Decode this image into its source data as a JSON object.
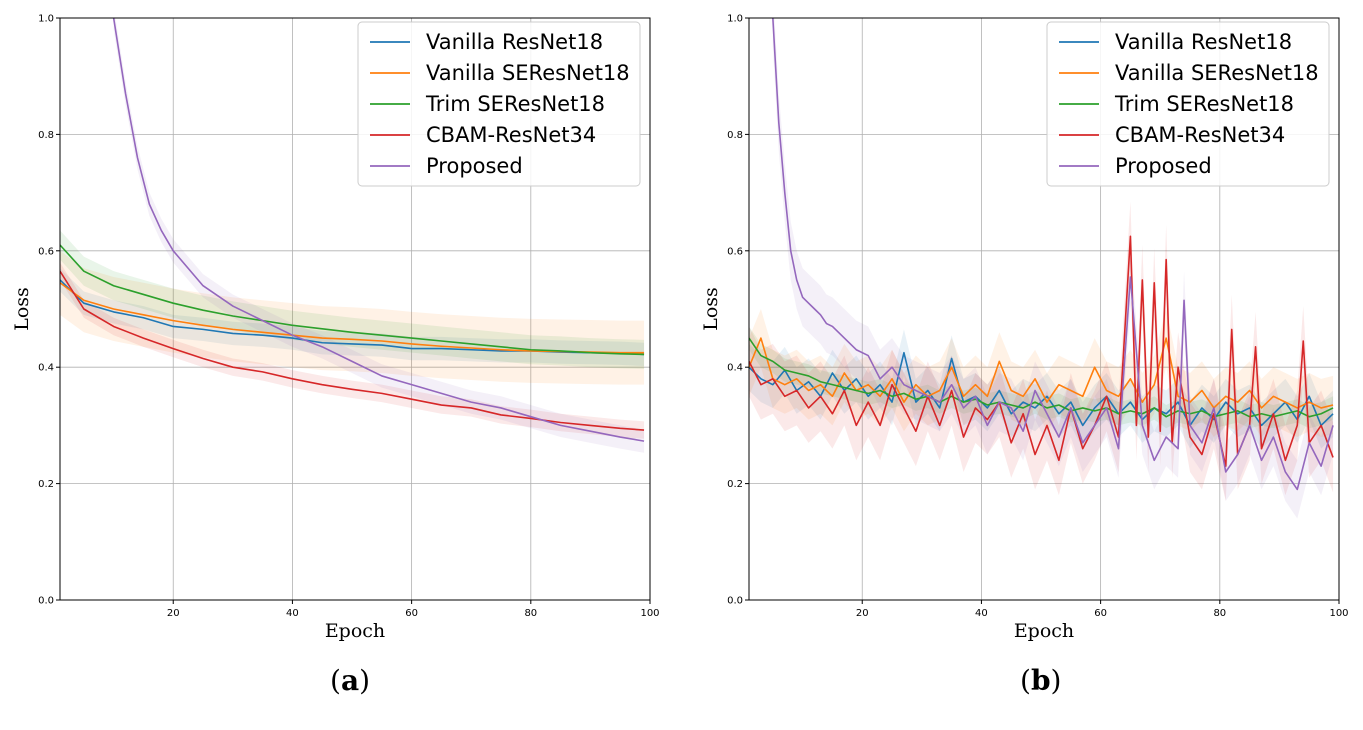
{
  "chart_data": [
    {
      "type": "line",
      "panel": "a",
      "panel_label": "(a)",
      "xlabel": "Epoch",
      "ylabel": "Loss",
      "xlim": [
        1,
        100
      ],
      "ylim": [
        0.0,
        1.0
      ],
      "xticks": [
        20,
        40,
        60,
        80,
        100
      ],
      "yticks": [
        0.0,
        0.2,
        0.4,
        0.6,
        0.8,
        1.0
      ],
      "ytick_labels": [
        "0.0",
        "0.2",
        "0.4",
        "0.6",
        "0.8",
        "1.0"
      ],
      "xtick_labels": [
        "20",
        "40",
        "60",
        "80",
        "100"
      ],
      "grid": true,
      "legend_position": "top-right",
      "series": [
        {
          "name": "Vanilla ResNet18",
          "color": "#1f77b4",
          "band": 0.02,
          "x": [
            1,
            5,
            10,
            15,
            20,
            25,
            30,
            35,
            40,
            45,
            50,
            55,
            60,
            65,
            70,
            75,
            80,
            85,
            90,
            95,
            99
          ],
          "values": [
            0.55,
            0.51,
            0.495,
            0.485,
            0.47,
            0.465,
            0.458,
            0.455,
            0.45,
            0.442,
            0.44,
            0.438,
            0.432,
            0.432,
            0.43,
            0.428,
            0.428,
            0.426,
            0.425,
            0.424,
            0.422
          ]
        },
        {
          "name": "Vanilla SEResNet18",
          "color": "#ff7f0e",
          "band": 0.055,
          "x": [
            1,
            5,
            10,
            15,
            20,
            25,
            30,
            35,
            40,
            45,
            50,
            55,
            60,
            65,
            70,
            75,
            80,
            85,
            90,
            95,
            99
          ],
          "values": [
            0.545,
            0.515,
            0.5,
            0.49,
            0.48,
            0.472,
            0.465,
            0.46,
            0.455,
            0.45,
            0.448,
            0.445,
            0.44,
            0.436,
            0.433,
            0.43,
            0.428,
            0.427,
            0.426,
            0.425,
            0.425
          ]
        },
        {
          "name": "Trim SEResNet18",
          "color": "#2ca02c",
          "band": 0.025,
          "x": [
            1,
            5,
            10,
            15,
            20,
            25,
            30,
            35,
            40,
            45,
            50,
            55,
            60,
            65,
            70,
            75,
            80,
            85,
            90,
            95,
            99
          ],
          "values": [
            0.61,
            0.565,
            0.54,
            0.525,
            0.51,
            0.498,
            0.488,
            0.48,
            0.472,
            0.466,
            0.46,
            0.455,
            0.45,
            0.445,
            0.44,
            0.435,
            0.43,
            0.428,
            0.425,
            0.423,
            0.422
          ]
        },
        {
          "name": "CBAM-ResNet34",
          "color": "#d62728",
          "band": 0.015,
          "x": [
            1,
            5,
            10,
            15,
            20,
            25,
            30,
            35,
            40,
            45,
            50,
            55,
            60,
            65,
            70,
            75,
            80,
            85,
            90,
            95,
            99
          ],
          "values": [
            0.565,
            0.5,
            0.47,
            0.45,
            0.432,
            0.415,
            0.4,
            0.392,
            0.38,
            0.37,
            0.362,
            0.355,
            0.345,
            0.335,
            0.33,
            0.318,
            0.312,
            0.305,
            0.3,
            0.295,
            0.292
          ]
        },
        {
          "name": "Proposed",
          "color": "#9467bd",
          "band": 0.02,
          "x": [
            10,
            12,
            14,
            16,
            18,
            20,
            25,
            30,
            35,
            40,
            45,
            50,
            55,
            60,
            65,
            70,
            75,
            80,
            85,
            90,
            95,
            99
          ],
          "values": [
            1.0,
            0.87,
            0.76,
            0.68,
            0.635,
            0.6,
            0.54,
            0.505,
            0.48,
            0.455,
            0.435,
            0.41,
            0.385,
            0.37,
            0.355,
            0.34,
            0.33,
            0.315,
            0.3,
            0.29,
            0.28,
            0.273
          ]
        }
      ]
    },
    {
      "type": "line",
      "panel": "b",
      "panel_label": "(b)",
      "xlabel": "Epoch",
      "ylabel": "Loss",
      "xlim": [
        1,
        100
      ],
      "ylim": [
        0.0,
        1.0
      ],
      "xticks": [
        20,
        40,
        60,
        80,
        100
      ],
      "yticks": [
        0.0,
        0.2,
        0.4,
        0.6,
        0.8,
        1.0
      ],
      "ytick_labels": [
        "0.0",
        "0.2",
        "0.4",
        "0.6",
        "0.8",
        "1.0"
      ],
      "xtick_labels": [
        "20",
        "40",
        "60",
        "80",
        "100"
      ],
      "grid": true,
      "legend_position": "top-right",
      "series": [
        {
          "name": "Vanilla ResNet18",
          "color": "#1f77b4",
          "band": 0.04,
          "x": [
            1,
            3,
            5,
            7,
            9,
            11,
            13,
            15,
            17,
            19,
            21,
            23,
            25,
            27,
            29,
            31,
            33,
            35,
            37,
            39,
            41,
            43,
            45,
            47,
            49,
            51,
            53,
            55,
            57,
            59,
            61,
            63,
            65,
            67,
            69,
            71,
            73,
            75,
            77,
            79,
            81,
            83,
            85,
            87,
            89,
            91,
            93,
            95,
            97,
            99
          ],
          "values": [
            0.4,
            0.38,
            0.37,
            0.395,
            0.36,
            0.375,
            0.35,
            0.39,
            0.36,
            0.38,
            0.35,
            0.37,
            0.34,
            0.425,
            0.34,
            0.36,
            0.33,
            0.415,
            0.34,
            0.35,
            0.33,
            0.36,
            0.32,
            0.34,
            0.33,
            0.35,
            0.32,
            0.34,
            0.3,
            0.33,
            0.35,
            0.32,
            0.34,
            0.31,
            0.33,
            0.32,
            0.34,
            0.3,
            0.33,
            0.31,
            0.34,
            0.32,
            0.33,
            0.3,
            0.32,
            0.34,
            0.31,
            0.35,
            0.3,
            0.32
          ]
        },
        {
          "name": "Vanilla SEResNet18",
          "color": "#ff7f0e",
          "band": 0.05,
          "x": [
            1,
            3,
            5,
            7,
            9,
            11,
            13,
            15,
            17,
            19,
            21,
            23,
            25,
            27,
            29,
            31,
            33,
            35,
            37,
            39,
            41,
            43,
            45,
            47,
            49,
            51,
            53,
            55,
            57,
            59,
            61,
            63,
            65,
            67,
            69,
            71,
            73,
            75,
            77,
            79,
            81,
            83,
            85,
            87,
            89,
            91,
            93,
            95,
            97,
            99
          ],
          "values": [
            0.4,
            0.45,
            0.38,
            0.37,
            0.38,
            0.36,
            0.37,
            0.35,
            0.39,
            0.36,
            0.37,
            0.35,
            0.38,
            0.34,
            0.37,
            0.35,
            0.36,
            0.4,
            0.35,
            0.37,
            0.35,
            0.41,
            0.36,
            0.35,
            0.38,
            0.34,
            0.37,
            0.36,
            0.35,
            0.4,
            0.36,
            0.35,
            0.38,
            0.34,
            0.37,
            0.45,
            0.35,
            0.34,
            0.36,
            0.33,
            0.35,
            0.34,
            0.36,
            0.33,
            0.35,
            0.34,
            0.33,
            0.34,
            0.33,
            0.335
          ]
        },
        {
          "name": "Trim SEResNet18",
          "color": "#2ca02c",
          "band": 0.02,
          "x": [
            1,
            3,
            5,
            7,
            9,
            11,
            13,
            15,
            17,
            19,
            21,
            23,
            25,
            27,
            29,
            31,
            33,
            35,
            37,
            39,
            41,
            43,
            45,
            47,
            49,
            51,
            53,
            55,
            57,
            59,
            61,
            63,
            65,
            67,
            69,
            71,
            73,
            75,
            77,
            79,
            81,
            83,
            85,
            87,
            89,
            91,
            93,
            95,
            97,
            99
          ],
          "values": [
            0.45,
            0.42,
            0.41,
            0.395,
            0.39,
            0.385,
            0.375,
            0.37,
            0.365,
            0.36,
            0.355,
            0.36,
            0.35,
            0.355,
            0.345,
            0.35,
            0.34,
            0.35,
            0.34,
            0.345,
            0.335,
            0.34,
            0.335,
            0.33,
            0.34,
            0.33,
            0.335,
            0.325,
            0.33,
            0.325,
            0.33,
            0.32,
            0.325,
            0.32,
            0.33,
            0.315,
            0.325,
            0.32,
            0.325,
            0.315,
            0.32,
            0.325,
            0.315,
            0.32,
            0.315,
            0.32,
            0.325,
            0.315,
            0.32,
            0.33
          ]
        },
        {
          "name": "CBAM-ResNet34",
          "color": "#d62728",
          "band": 0.06,
          "x": [
            1,
            3,
            5,
            7,
            9,
            11,
            13,
            15,
            17,
            19,
            21,
            23,
            25,
            27,
            29,
            31,
            33,
            35,
            37,
            39,
            41,
            43,
            45,
            47,
            49,
            51,
            53,
            55,
            57,
            59,
            61,
            63,
            65,
            66,
            67,
            68,
            69,
            70,
            71,
            72,
            73,
            75,
            77,
            79,
            81,
            82,
            83,
            85,
            86,
            87,
            89,
            91,
            93,
            94,
            95,
            97,
            99
          ],
          "values": [
            0.41,
            0.37,
            0.38,
            0.35,
            0.36,
            0.33,
            0.35,
            0.32,
            0.36,
            0.3,
            0.34,
            0.3,
            0.37,
            0.33,
            0.29,
            0.35,
            0.3,
            0.36,
            0.28,
            0.33,
            0.31,
            0.34,
            0.27,
            0.32,
            0.25,
            0.3,
            0.24,
            0.33,
            0.26,
            0.3,
            0.35,
            0.28,
            0.625,
            0.3,
            0.55,
            0.28,
            0.545,
            0.29,
            0.585,
            0.27,
            0.4,
            0.28,
            0.25,
            0.32,
            0.23,
            0.465,
            0.25,
            0.3,
            0.435,
            0.26,
            0.32,
            0.24,
            0.3,
            0.445,
            0.27,
            0.3,
            0.245
          ]
        },
        {
          "name": "Proposed",
          "color": "#9467bd",
          "band": 0.05,
          "x": [
            5,
            6,
            7,
            8,
            9,
            10,
            11,
            12,
            13,
            14,
            15,
            17,
            19,
            21,
            23,
            25,
            27,
            29,
            31,
            33,
            35,
            37,
            39,
            41,
            43,
            45,
            47,
            49,
            51,
            53,
            55,
            57,
            59,
            61,
            63,
            65,
            67,
            69,
            71,
            73,
            74,
            75,
            77,
            79,
            81,
            83,
            85,
            87,
            89,
            91,
            93,
            95,
            97,
            99
          ],
          "values": [
            1.0,
            0.82,
            0.7,
            0.6,
            0.55,
            0.52,
            0.51,
            0.5,
            0.49,
            0.475,
            0.47,
            0.45,
            0.43,
            0.42,
            0.38,
            0.4,
            0.37,
            0.36,
            0.35,
            0.34,
            0.37,
            0.33,
            0.35,
            0.3,
            0.34,
            0.33,
            0.29,
            0.36,
            0.32,
            0.28,
            0.33,
            0.27,
            0.3,
            0.33,
            0.26,
            0.555,
            0.3,
            0.24,
            0.28,
            0.26,
            0.515,
            0.3,
            0.27,
            0.33,
            0.22,
            0.25,
            0.3,
            0.24,
            0.28,
            0.22,
            0.19,
            0.27,
            0.23,
            0.3
          ]
        }
      ]
    }
  ]
}
